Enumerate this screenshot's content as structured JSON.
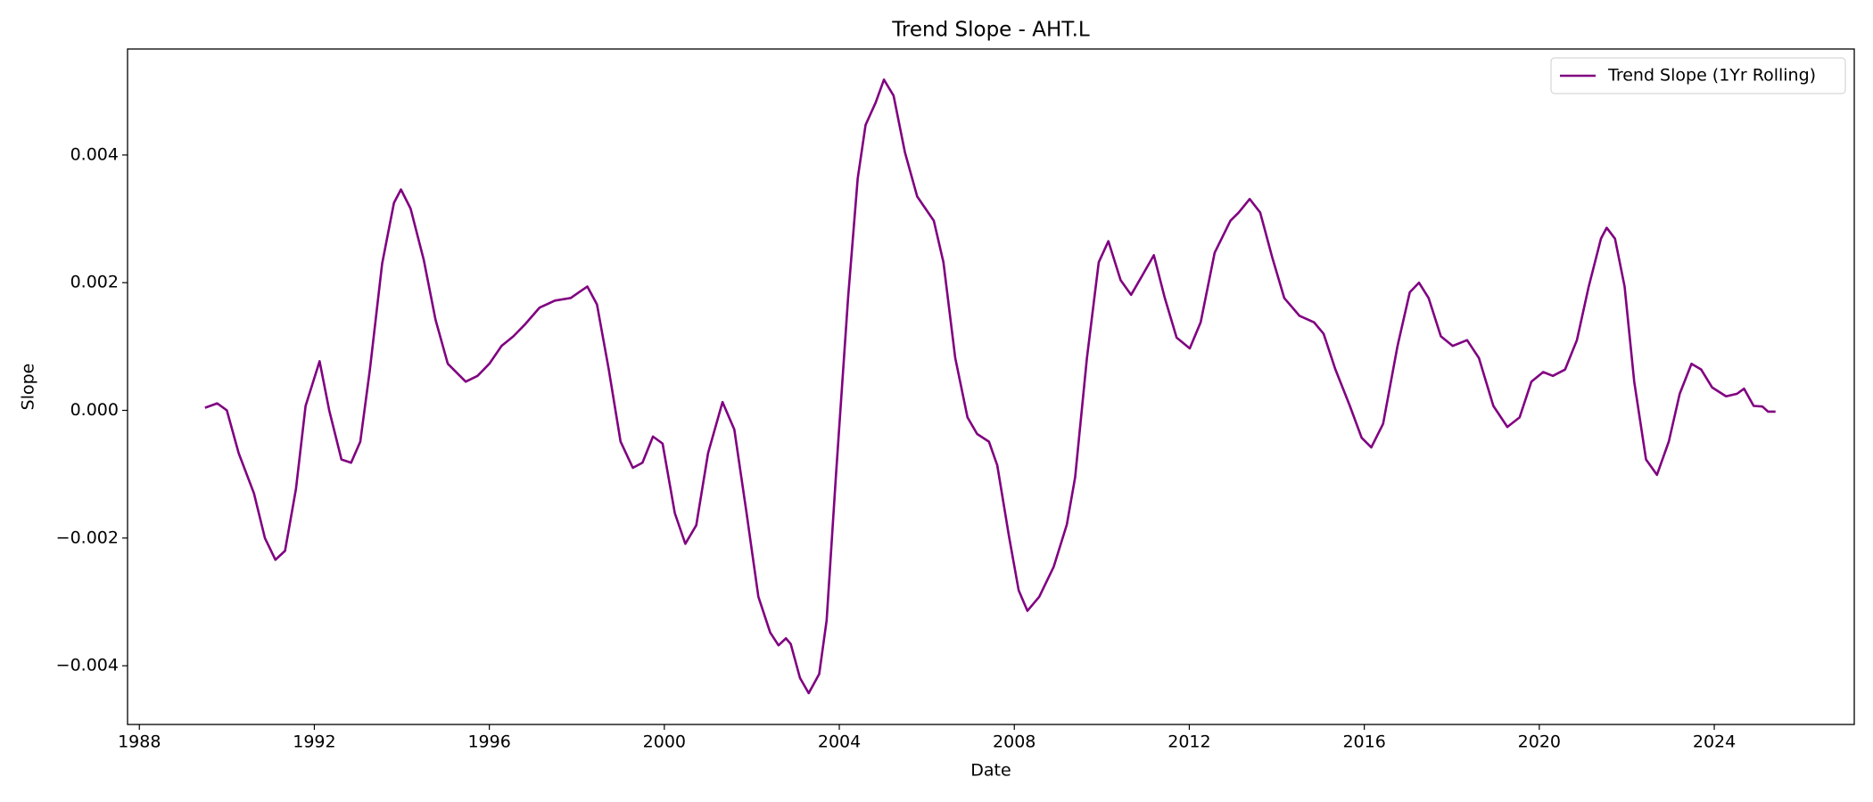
{
  "chart_data": {
    "type": "line",
    "title": "Trend Slope - AHT.L",
    "x_label": "Date",
    "y_label": "Slope",
    "x": [
      1989.5,
      1989.78,
      1990.0,
      1990.27,
      1990.62,
      1990.87,
      1991.11,
      1991.33,
      1991.58,
      1991.8,
      1992.12,
      1992.34,
      1992.62,
      1992.84,
      1993.05,
      1993.27,
      1993.55,
      1993.82,
      1993.98,
      1994.2,
      1994.5,
      1994.77,
      1995.05,
      1995.46,
      1995.73,
      1996.0,
      1996.28,
      1996.55,
      1996.82,
      1997.15,
      1997.5,
      1997.86,
      1998.05,
      1998.24,
      1998.46,
      1998.73,
      1999.0,
      1999.28,
      1999.5,
      1999.74,
      1999.96,
      2000.24,
      2000.48,
      2000.73,
      2001.0,
      2001.33,
      2001.6,
      2001.88,
      2002.15,
      2002.42,
      2002.61,
      2002.78,
      2002.89,
      2003.1,
      2003.3,
      2003.54,
      2003.71,
      2003.92,
      2004.2,
      2004.42,
      2004.6,
      2004.83,
      2005.02,
      2005.24,
      2005.5,
      2005.78,
      2005.97,
      2006.16,
      2006.38,
      2006.65,
      2006.93,
      2007.15,
      2007.42,
      2007.61,
      2007.88,
      2008.1,
      2008.3,
      2008.57,
      2008.9,
      2009.2,
      2009.39,
      2009.66,
      2009.93,
      2010.15,
      2010.43,
      2010.67,
      2010.94,
      2011.19,
      2011.44,
      2011.71,
      2012.01,
      2012.26,
      2012.58,
      2012.94,
      2013.13,
      2013.38,
      2013.62,
      2013.89,
      2014.17,
      2014.52,
      2014.85,
      2015.07,
      2015.34,
      2015.67,
      2015.94,
      2016.16,
      2016.43,
      2016.76,
      2017.04,
      2017.25,
      2017.47,
      2017.75,
      2018.02,
      2018.35,
      2018.62,
      2018.95,
      2019.27,
      2019.55,
      2019.82,
      2020.09,
      2020.31,
      2020.59,
      2020.86,
      2021.13,
      2021.41,
      2021.54,
      2021.73,
      2021.95,
      2022.17,
      2022.44,
      2022.69,
      2022.96,
      2023.21,
      2023.48,
      2023.7,
      2023.95,
      2024.27,
      2024.52,
      2024.68,
      2024.9,
      2025.1,
      2025.23,
      2025.4
    ],
    "series": [
      {
        "name": "Trend Slope (1Yr Rolling)",
        "color": "#800080",
        "values": [
          4e-05,
          0.00011,
          0.0,
          -0.00067,
          -0.0013,
          -0.002,
          -0.00234,
          -0.0022,
          -0.00123,
          7e-05,
          0.00077,
          0.0,
          -0.00077,
          -0.00082,
          -0.00049,
          0.00064,
          0.0023,
          0.00325,
          0.00346,
          0.00316,
          0.00236,
          0.00142,
          0.00073,
          0.00045,
          0.00054,
          0.00073,
          0.00101,
          0.00116,
          0.00135,
          0.00161,
          0.00172,
          0.00176,
          0.00185,
          0.00194,
          0.00166,
          0.00064,
          -0.00049,
          -0.0009,
          -0.00082,
          -0.00041,
          -0.00052,
          -0.00161,
          -0.00209,
          -0.0018,
          -0.00067,
          0.00013,
          -0.0003,
          -0.00161,
          -0.00292,
          -0.00348,
          -0.00368,
          -0.00357,
          -0.00366,
          -0.00419,
          -0.00443,
          -0.00413,
          -0.00329,
          -0.00105,
          0.00176,
          0.00363,
          0.00447,
          0.00482,
          0.00518,
          0.00493,
          0.00404,
          0.00335,
          0.00316,
          0.00297,
          0.00232,
          0.00082,
          -0.00011,
          -0.00037,
          -0.00049,
          -0.00086,
          -0.00198,
          -0.00282,
          -0.00314,
          -0.00292,
          -0.00245,
          -0.00179,
          -0.00105,
          0.00082,
          0.00232,
          0.00265,
          0.00204,
          0.00181,
          0.00213,
          0.00243,
          0.00176,
          0.00114,
          0.00097,
          0.00138,
          0.00247,
          0.00297,
          0.0031,
          0.00331,
          0.0031,
          0.00241,
          0.00176,
          0.00148,
          0.00138,
          0.0012,
          0.00064,
          7e-05,
          -0.00043,
          -0.00058,
          -0.00021,
          0.00101,
          0.00185,
          0.002,
          0.00176,
          0.00116,
          0.00101,
          0.0011,
          0.00082,
          7e-05,
          -0.00026,
          -0.00011,
          0.00045,
          0.0006,
          0.00054,
          0.00064,
          0.0011,
          0.00194,
          0.00269,
          0.00286,
          0.00269,
          0.00194,
          0.00045,
          -0.00077,
          -0.00101,
          -0.00049,
          0.00026,
          0.00073,
          0.00064,
          0.00036,
          0.00022,
          0.00026,
          0.00034,
          7e-05,
          6e-05,
          -2e-05,
          -2e-05
        ]
      }
    ],
    "xlim": [
      1987.73,
      2027.2
    ],
    "xticks": [
      1988,
      1992,
      1996,
      2000,
      2004,
      2008,
      2012,
      2016,
      2020,
      2024
    ],
    "ylim": [
      -0.00492,
      0.00566
    ],
    "yticks": [
      {
        "value": -0.004,
        "label": "−0.004"
      },
      {
        "value": -0.002,
        "label": "−0.002"
      },
      {
        "value": 0.0,
        "label": "0.000"
      },
      {
        "value": 0.002,
        "label": "0.002"
      },
      {
        "value": 0.004,
        "label": "0.004"
      }
    ],
    "legend": "upper right",
    "grid": false
  }
}
